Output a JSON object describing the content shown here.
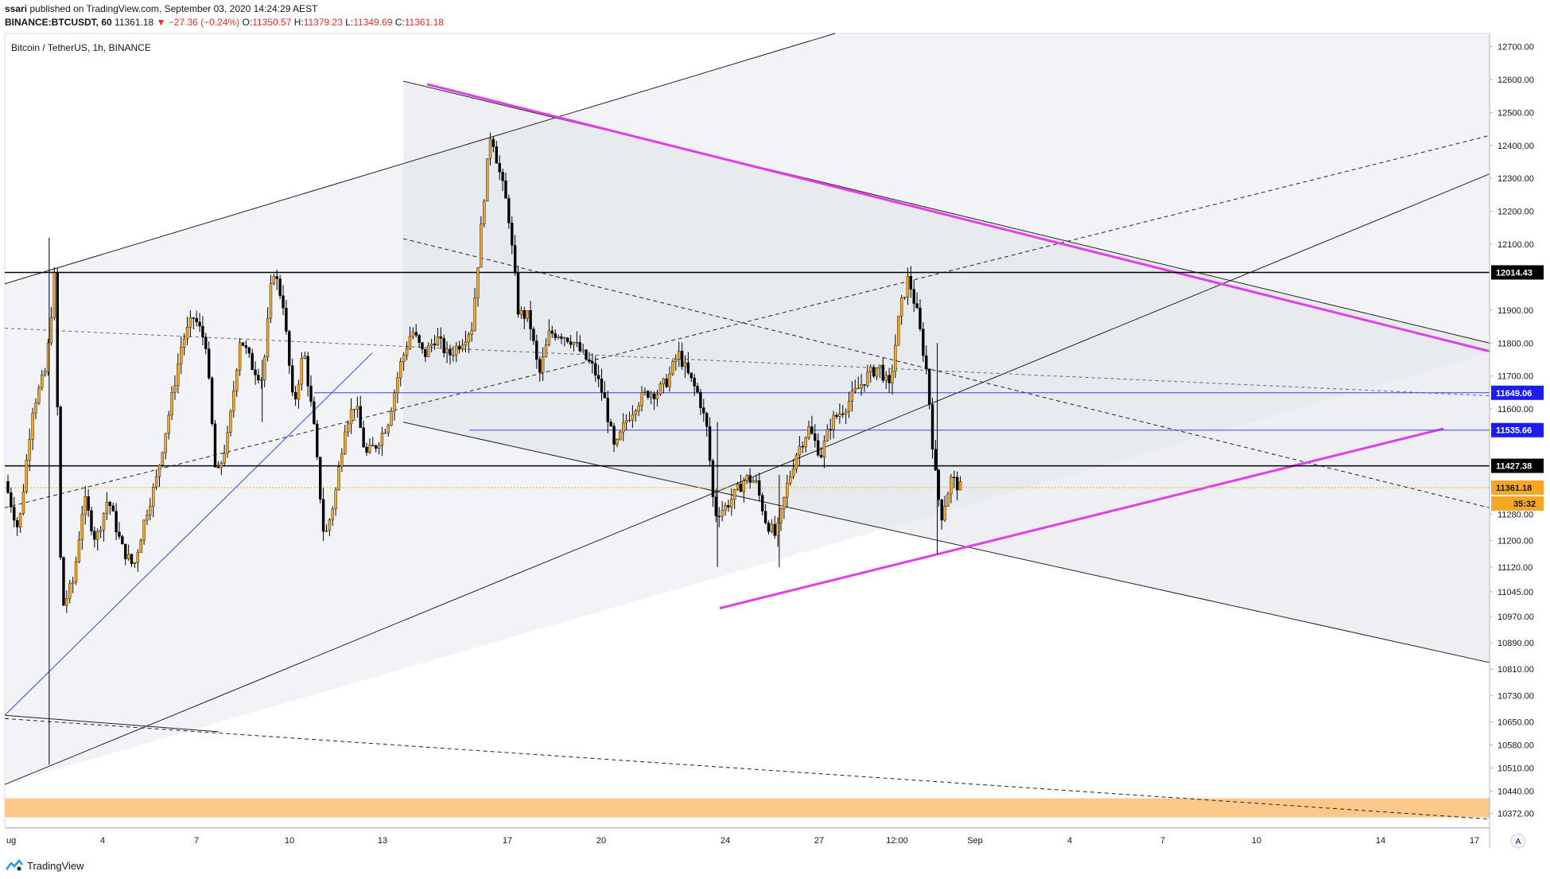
{
  "header": {
    "author": "ssari",
    "published_text": "published on TradingView.com, September 03, 2020 14:24:29 AEST",
    "symbol": "BINANCE:BTCUSDT, 60",
    "last": "11361.18",
    "change": "−27.36 (−0.24%)",
    "o_label": "O:",
    "o_value": "11350.57",
    "h_label": "H:",
    "h_value": "11379.23",
    "l_label": "L:",
    "l_value": "11349.69",
    "c_label": "C:",
    "c_value": "11361.18"
  },
  "footer": {
    "brand": "TradingView",
    "logo_icon": "tradingview-logo-icon"
  },
  "colors": {
    "up": "#f5a623",
    "down": "#000000",
    "trendline": "#e040e6",
    "blue_level": "#3d3dff",
    "black_level": "#000000",
    "zone": "#fcc98a"
  },
  "chart_data": {
    "type": "candlestick",
    "title": "Bitcoin / TetherUS, 1h, BINANCE",
    "x_ticks": [
      "ug",
      "4",
      "7",
      "10",
      "13",
      "17",
      "20",
      "24",
      "27",
      "12:00",
      "Sep",
      "4",
      "7",
      "10",
      "14",
      "17"
    ],
    "y_ticks": [
      "12700.00",
      "12600.00",
      "12500.00",
      "12400.00",
      "12300.00",
      "12200.00",
      "12100.00",
      "11900.00",
      "11800.00",
      "11700.00",
      "11600.00",
      "11280.00",
      "11200.00",
      "11120.00",
      "11045.00",
      "10970.00",
      "10890.00",
      "10810.00",
      "10730.00",
      "10650.00",
      "10580.00",
      "10510.00",
      "10440.00",
      "10372.00"
    ],
    "ylim": [
      10330,
      12740
    ],
    "price_labels": [
      {
        "value": "12014.43",
        "kind": "level"
      },
      {
        "value": "11649.06",
        "kind": "blue"
      },
      {
        "value": "11535.66",
        "kind": "blue"
      },
      {
        "value": "11427.38",
        "kind": "level"
      },
      {
        "value": "11361.18",
        "kind": "last"
      },
      {
        "value": "35:32",
        "kind": "countdown"
      }
    ],
    "scale_button": "A",
    "price_path": [
      [
        0,
        11380
      ],
      [
        0.8,
        11230
      ],
      [
        1.6,
        11600
      ],
      [
        2.4,
        11720
      ],
      [
        2.9,
        12010
      ],
      [
        3.3,
        10990
      ],
      [
        4,
        11080
      ],
      [
        4.6,
        11330
      ],
      [
        5.3,
        11200
      ],
      [
        6,
        11330
      ],
      [
        6.8,
        11180
      ],
      [
        7.5,
        11120
      ],
      [
        8.2,
        11280
      ],
      [
        8.8,
        11380
      ],
      [
        9.6,
        11600
      ],
      [
        10.3,
        11800
      ],
      [
        11,
        11880
      ],
      [
        11.7,
        11800
      ],
      [
        12.3,
        11380
      ],
      [
        13,
        11520
      ],
      [
        13.7,
        11820
      ],
      [
        14.4,
        11730
      ],
      [
        15,
        11690
      ],
      [
        15.6,
        12030
      ],
      [
        16.2,
        11920
      ],
      [
        16.8,
        11600
      ],
      [
        17.4,
        11780
      ],
      [
        18,
        11540
      ],
      [
        18.6,
        11200
      ],
      [
        19.2,
        11330
      ],
      [
        19.8,
        11550
      ],
      [
        20.4,
        11620
      ],
      [
        21,
        11460
      ],
      [
        21.6,
        11490
      ],
      [
        22.3,
        11560
      ],
      [
        23,
        11730
      ],
      [
        23.7,
        11840
      ],
      [
        24.4,
        11760
      ],
      [
        25.1,
        11820
      ],
      [
        25.8,
        11760
      ],
      [
        26.5,
        11800
      ],
      [
        27.2,
        11850
      ],
      [
        27.9,
        12250
      ],
      [
        28.3,
        12450
      ],
      [
        28.7,
        12340
      ],
      [
        29.3,
        12200
      ],
      [
        29.9,
        11890
      ],
      [
        30.5,
        11880
      ],
      [
        31.1,
        11700
      ],
      [
        31.7,
        11830
      ],
      [
        32.3,
        11830
      ],
      [
        33,
        11810
      ],
      [
        33.7,
        11760
      ],
      [
        34.3,
        11720
      ],
      [
        34.9,
        11630
      ],
      [
        35.5,
        11470
      ],
      [
        36.1,
        11560
      ],
      [
        36.8,
        11620
      ],
      [
        37.4,
        11650
      ],
      [
        38,
        11650
      ],
      [
        38.6,
        11690
      ],
      [
        39.2,
        11770
      ],
      [
        39.8,
        11700
      ],
      [
        40.4,
        11640
      ],
      [
        40.9,
        11530
      ],
      [
        41.3,
        11280
      ],
      [
        41.9,
        11300
      ],
      [
        42.5,
        11340
      ],
      [
        43.1,
        11390
      ],
      [
        43.7,
        11380
      ],
      [
        44.3,
        11260
      ],
      [
        44.9,
        11210
      ],
      [
        45.5,
        11360
      ],
      [
        46.1,
        11470
      ],
      [
        46.8,
        11540
      ],
      [
        47.5,
        11460
      ],
      [
        48.1,
        11560
      ],
      [
        48.8,
        11600
      ],
      [
        49.5,
        11650
      ],
      [
        50.2,
        11700
      ],
      [
        50.9,
        11730
      ],
      [
        51.5,
        11660
      ],
      [
        52.1,
        11900
      ],
      [
        52.6,
        12000
      ],
      [
        53.1,
        11890
      ],
      [
        53.7,
        11700
      ],
      [
        54.1,
        11430
      ],
      [
        54.5,
        11270
      ],
      [
        55.1,
        11390
      ],
      [
        55.6,
        11360
      ]
    ]
  }
}
